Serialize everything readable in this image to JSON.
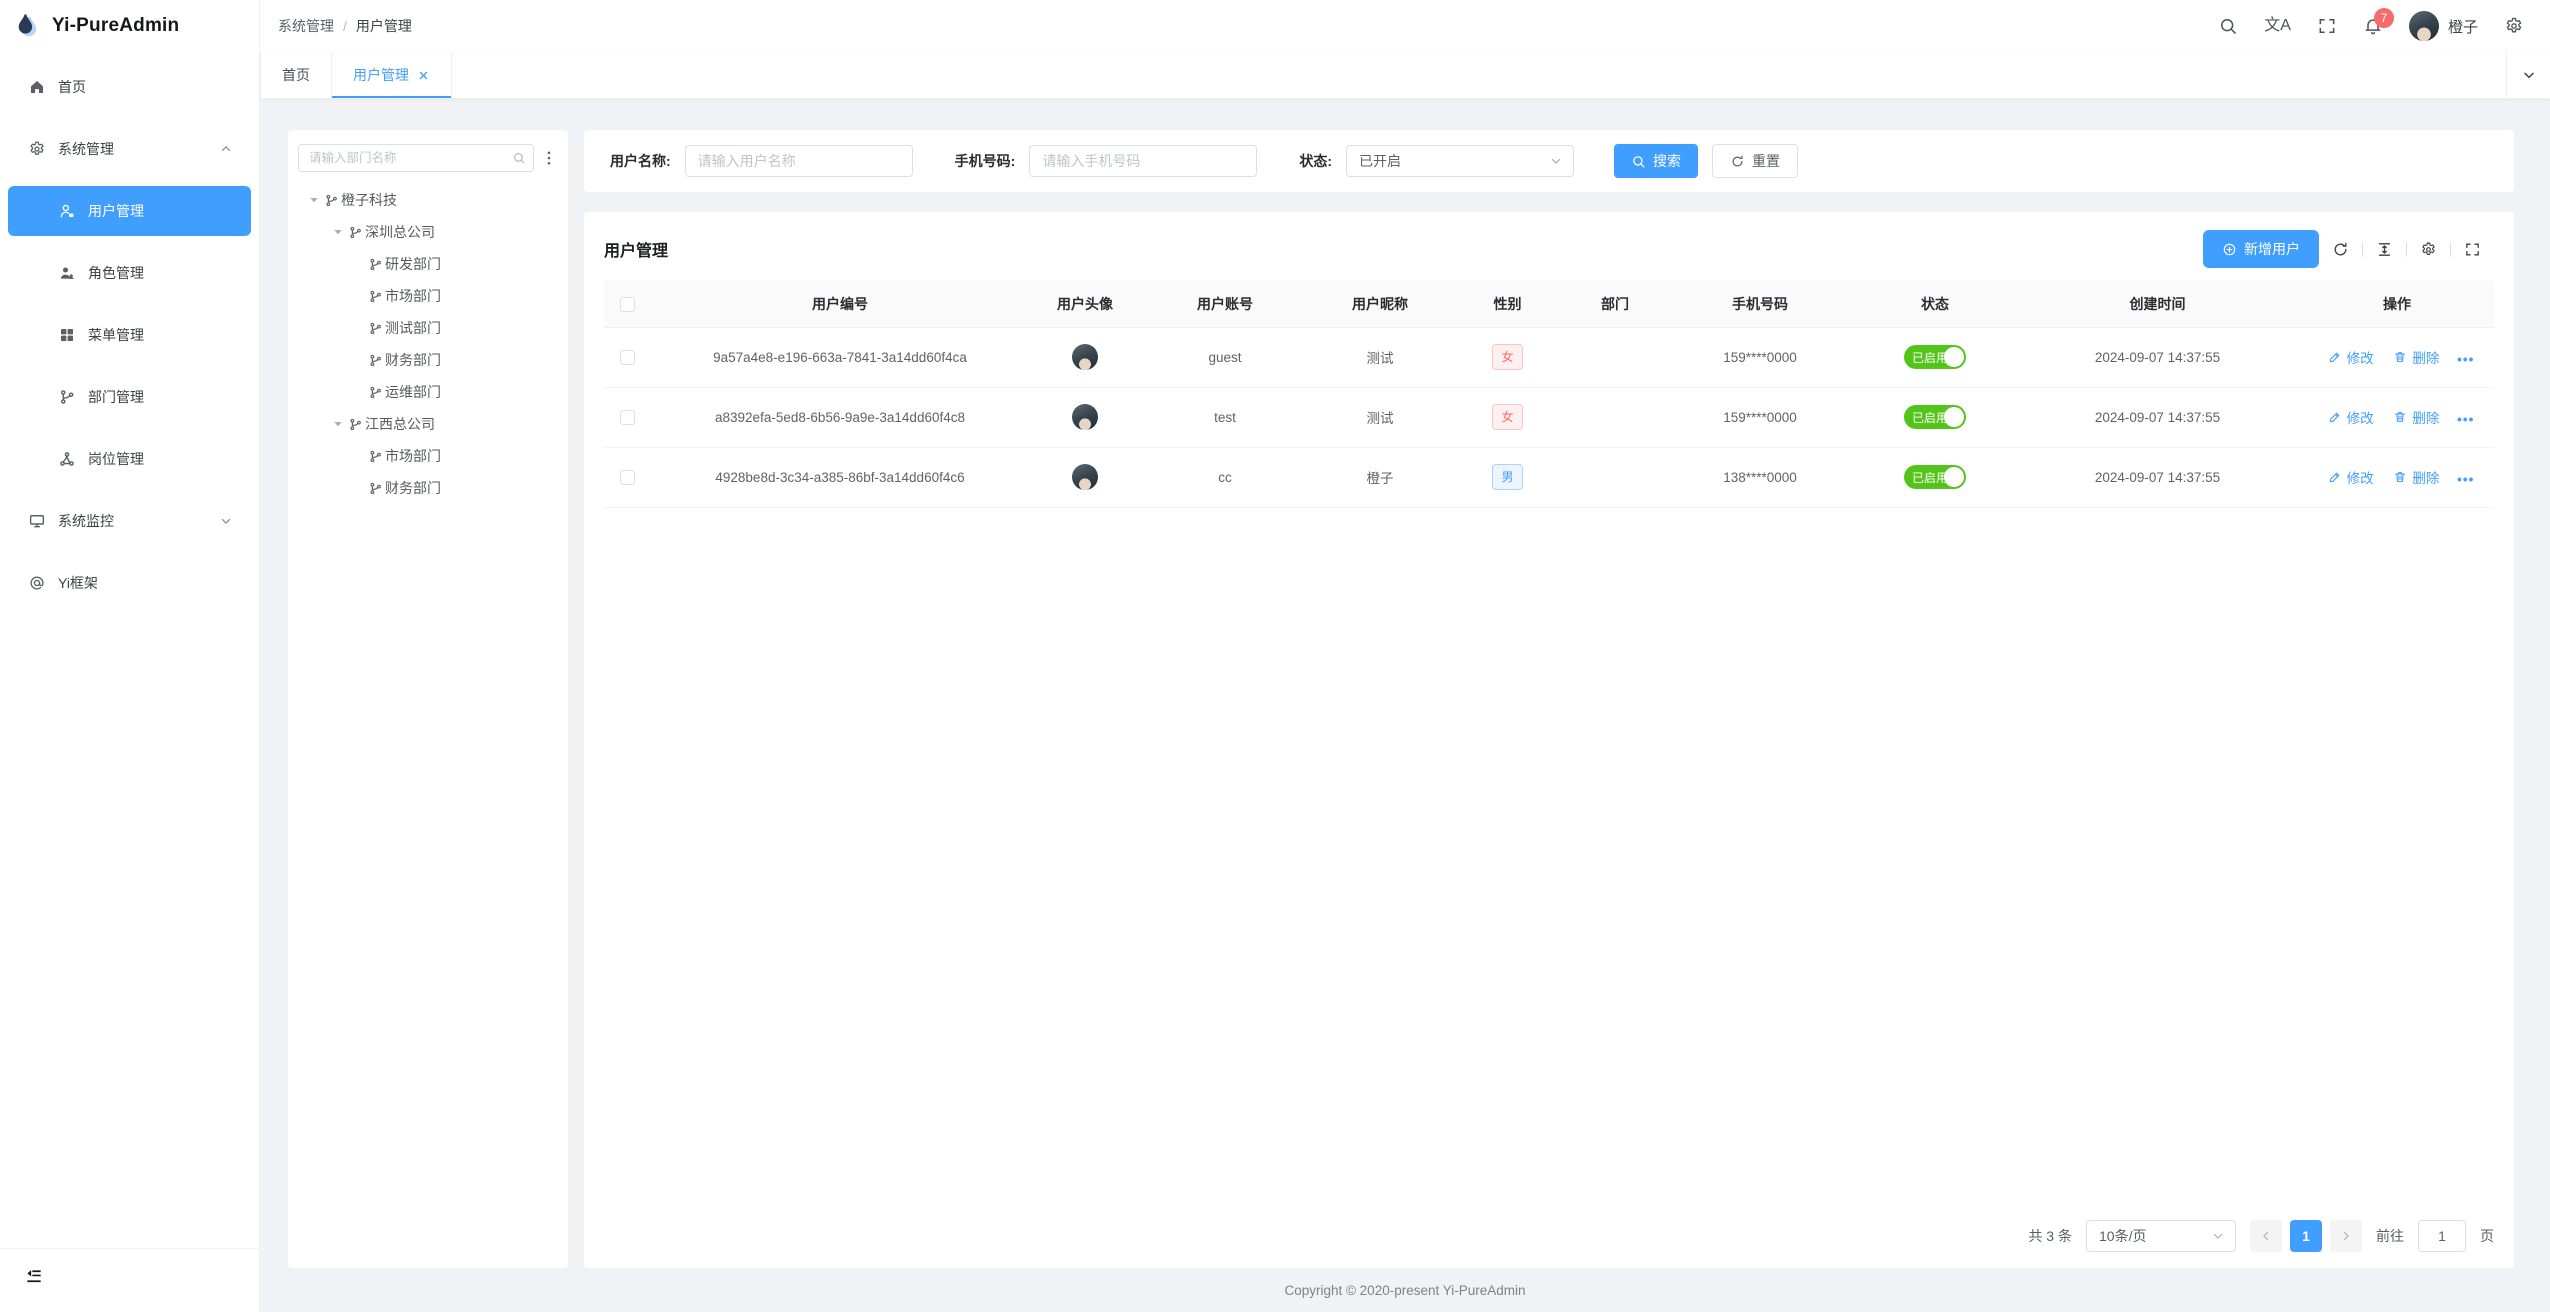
{
  "app": {
    "name": "Yi-PureAdmin"
  },
  "header": {
    "breadcrumb": {
      "items": [
        "系统管理",
        "用户管理"
      ],
      "separator": "/"
    },
    "translate_glyph": "文A",
    "notification_count": "7",
    "username": "橙子"
  },
  "tabbar": {
    "tabs": [
      {
        "key": "home",
        "label": "首页",
        "active": false,
        "closable": false
      },
      {
        "key": "user-management",
        "label": "用户管理",
        "active": true,
        "closable": true
      }
    ]
  },
  "sidebar": {
    "items": [
      {
        "key": "home",
        "label": "首页",
        "icon": "home-icon",
        "level": 0
      },
      {
        "key": "system-management",
        "label": "系统管理",
        "icon": "gear-icon",
        "level": 0,
        "arrow": "up"
      },
      {
        "key": "user-management",
        "label": "用户管理",
        "icon": "user-lock-icon",
        "level": 1,
        "active": true
      },
      {
        "key": "role-management",
        "label": "角色管理",
        "icon": "users-icon",
        "level": 1
      },
      {
        "key": "menu-management",
        "label": "菜单管理",
        "icon": "menu-grid-icon",
        "level": 1
      },
      {
        "key": "dept-management",
        "label": "部门管理",
        "icon": "branch-icon",
        "level": 1
      },
      {
        "key": "post-management",
        "label": "岗位管理",
        "icon": "share-nodes-icon",
        "level": 1
      },
      {
        "key": "system-monitor",
        "label": "系统监控",
        "icon": "monitor-icon",
        "level": 0,
        "arrow": "down"
      },
      {
        "key": "yi-framework",
        "label": "Yi框架",
        "icon": "at-icon",
        "level": 0
      }
    ]
  },
  "dept_panel": {
    "search_placeholder": "请输入部门名称",
    "nodes": [
      {
        "label": "橙子科技",
        "level": 0,
        "expandable": true
      },
      {
        "label": "深圳总公司",
        "level": 1,
        "expandable": true
      },
      {
        "label": "研发部门",
        "level": 2,
        "expandable": false
      },
      {
        "label": "市场部门",
        "level": 2,
        "expandable": false
      },
      {
        "label": "测试部门",
        "level": 2,
        "expandable": false
      },
      {
        "label": "财务部门",
        "level": 2,
        "expandable": false
      },
      {
        "label": "运维部门",
        "level": 2,
        "expandable": false
      },
      {
        "label": "江西总公司",
        "level": 1,
        "expandable": true
      },
      {
        "label": "市场部门",
        "level": 2,
        "expandable": false
      },
      {
        "label": "财务部门",
        "level": 2,
        "expandable": false
      }
    ]
  },
  "filter": {
    "fields": [
      {
        "label": "用户名称:",
        "placeholder": "请输入用户名称",
        "type": "input"
      },
      {
        "label": "手机号码:",
        "placeholder": "请输入手机号码",
        "type": "input"
      },
      {
        "label": "状态:",
        "value": "已开启",
        "type": "select"
      }
    ],
    "search_label": "搜索",
    "reset_label": "重置"
  },
  "user_card": {
    "title": "用户管理",
    "add_button_label": "新增用户"
  },
  "table": {
    "columns": [
      "",
      "用户编号",
      "用户头像",
      "用户账号",
      "用户昵称",
      "性别",
      "部门",
      "手机号码",
      "状态",
      "创建时间",
      "操作"
    ],
    "rows": [
      {
        "id": "9a57a4e8-e196-663a-7841-3a14dd60f4ca",
        "account": "guest",
        "nickname": "测试",
        "gender": "女",
        "gender_type": "female",
        "dept": "",
        "phone": "159****0000",
        "status": "已启用",
        "created": "2024-09-07 14:37:55"
      },
      {
        "id": "a8392efa-5ed8-6b56-9a9e-3a14dd60f4c8",
        "account": "test",
        "nickname": "测试",
        "gender": "女",
        "gender_type": "female",
        "dept": "",
        "phone": "159****0000",
        "status": "已启用",
        "created": "2024-09-07 14:37:55"
      },
      {
        "id": "4928be8d-3c34-a385-86bf-3a14dd60f4c6",
        "account": "cc",
        "nickname": "橙子",
        "gender": "男",
        "gender_type": "male",
        "dept": "",
        "phone": "138****0000",
        "status": "已启用",
        "created": "2024-09-07 14:37:55"
      }
    ],
    "actions": {
      "edit": "修改",
      "delete": "删除",
      "more": "•••"
    }
  },
  "pagination": {
    "total": "共 3 条",
    "page_size": "10条/页",
    "current_page": "1",
    "goto_label": "前往",
    "goto_value": "1",
    "page_unit": "页"
  },
  "footer": {
    "copyright": "Copyright © 2020-present Yi-PureAdmin"
  },
  "colors": {
    "primary": "#409eff",
    "success": "#52c41a",
    "danger": "#f56c6c"
  }
}
